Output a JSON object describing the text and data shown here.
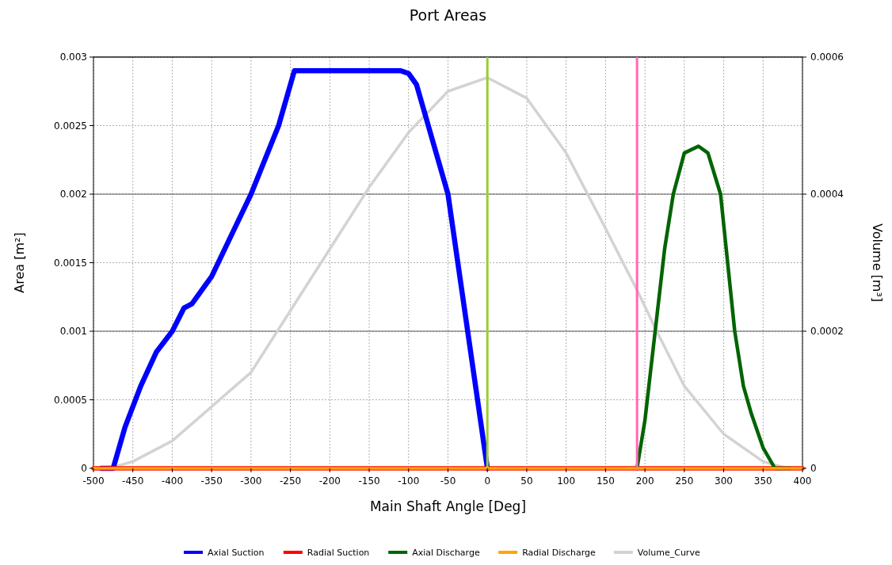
{
  "chart_data": {
    "type": "line",
    "title": "Port Areas",
    "xlabel": "Main Shaft Angle [Deg]",
    "ylabel": "Area [m²]",
    "y2label": "Volume [m³]",
    "xlim": [
      -500,
      400
    ],
    "xticks": [
      -500,
      -450,
      -400,
      -350,
      -300,
      -250,
      -200,
      -150,
      -100,
      -50,
      0,
      50,
      100,
      150,
      200,
      250,
      300,
      350,
      400
    ],
    "ylim": [
      0,
      0.003
    ],
    "yticks": [
      0,
      0.0005,
      0.001,
      0.0015,
      0.002,
      0.0025,
      0.003
    ],
    "y2lim": [
      0,
      0.0006
    ],
    "y2ticks": [
      0,
      0.0002,
      0.0004,
      0.0006
    ],
    "grid": true,
    "legend": "bottom",
    "marker": "none",
    "line_style": "solid",
    "ref_lines": [
      {
        "axis": "x",
        "value": 0,
        "color": "#9acd32"
      },
      {
        "axis": "x",
        "value": 190,
        "color": "#ff69b4"
      }
    ],
    "series": [
      {
        "name": "Axial Suction",
        "color": "#0000ff",
        "x": [
          -490,
          -483,
          -475,
          -460,
          -440,
          -420,
          -400,
          -385,
          -375,
          -350,
          -325,
          -300,
          -265,
          -245,
          -200,
          -150,
          -110,
          -100,
          -90,
          -80,
          -70,
          -60,
          -50,
          -25,
          0
        ],
        "values": [
          0,
          0,
          0,
          0.0003,
          0.0006,
          0.00085,
          0.001,
          0.00117,
          0.0012,
          0.0014,
          0.0017,
          0.002,
          0.0025,
          0.0029,
          0.0029,
          0.0029,
          0.0029,
          0.00288,
          0.0028,
          0.0026,
          0.0024,
          0.0022,
          0.002,
          0.001,
          0
        ]
      },
      {
        "name": "Radial Suction",
        "color": "#ff0000",
        "x": [
          -500,
          400
        ],
        "values": [
          0,
          0
        ]
      },
      {
        "name": "Axial Discharge",
        "color": "#006400",
        "x": [
          190,
          200,
          213,
          225,
          236,
          250,
          268,
          280,
          296,
          305,
          314,
          325,
          335,
          350,
          365,
          385
        ],
        "values": [
          0,
          0.00035,
          0.001,
          0.0016,
          0.002,
          0.0023,
          0.00235,
          0.0023,
          0.002,
          0.0015,
          0.001,
          0.0006,
          0.0004,
          0.00015,
          0,
          0
        ]
      },
      {
        "name": "Radial Discharge",
        "color": "#ffa500",
        "x": [
          -500,
          400
        ],
        "values": [
          0,
          0
        ]
      },
      {
        "name": "Volume_Curve",
        "color": "#d3d3d3",
        "axis": "y2",
        "x": [
          -480,
          -450,
          -400,
          -350,
          -300,
          -250,
          -200,
          -150,
          -100,
          -50,
          0,
          50,
          100,
          150,
          190,
          215,
          250,
          300,
          350,
          380
        ],
        "values": [
          0,
          1e-05,
          4e-05,
          9e-05,
          0.00014,
          0.00023,
          0.00032,
          0.00041,
          0.00049,
          0.00055,
          0.00057,
          0.00054,
          0.00046,
          0.00035,
          0.00026,
          0.0002,
          0.00012,
          5e-05,
          1e-05,
          0
        ]
      }
    ]
  }
}
